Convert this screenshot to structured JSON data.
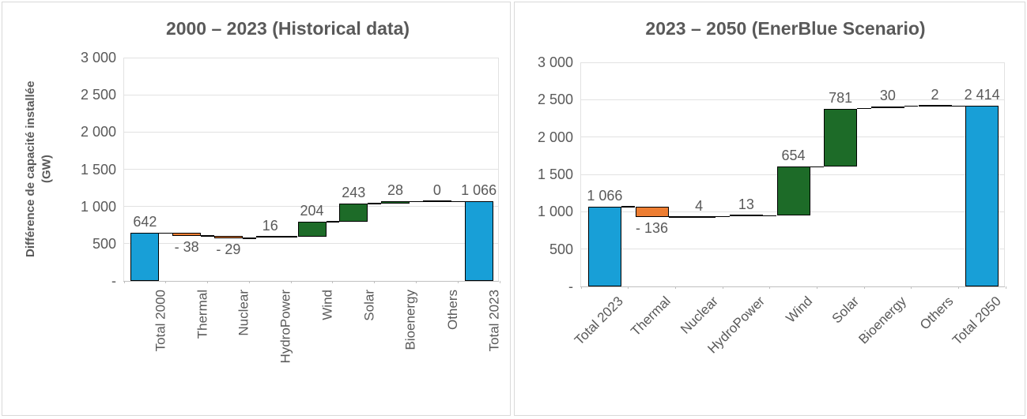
{
  "colors": {
    "total_bar": "#189FD7",
    "increase_bar": "#1D6B28",
    "decrease_bar": "#ED7D31",
    "bar_border": "#000000",
    "text": "#595959",
    "gridline": "#E2E2E2",
    "axis_line": "#BFBFBF",
    "panel_border": "#D9D9D9",
    "background": "#FFFFFF"
  },
  "chart_data": [
    {
      "type": "bar",
      "subtype": "waterfall",
      "title": "2000 – 2023 (Historical data)",
      "ylabel": "Différence de capacité installée (GW)",
      "categories": [
        "Total 2000",
        "Thermal",
        "Nuclear",
        "HydroPower",
        "Wind",
        "Solar",
        "Bioenergy",
        "Others",
        "Total 2023"
      ],
      "values": [
        642,
        -38,
        -29,
        16,
        204,
        243,
        28,
        0,
        1066
      ],
      "value_labels": [
        "642",
        "- 38",
        "- 29",
        "16",
        "204",
        "243",
        "28",
        "0",
        "1 066"
      ],
      "bar_roles": [
        "total",
        "decrease",
        "decrease",
        "increase",
        "increase",
        "increase",
        "increase",
        "increase",
        "total"
      ],
      "ylim": [
        0,
        3000
      ],
      "yticks": [
        3000,
        2500,
        2000,
        1500,
        1000,
        500,
        0
      ],
      "ytick_labels": [
        "3 000",
        "2 500",
        "2 000",
        "1 500",
        "1 000",
        "500",
        "-"
      ],
      "grid": true,
      "legend": "none",
      "connector_lines": true,
      "x_tick_rotation_deg": 90
    },
    {
      "type": "bar",
      "subtype": "waterfall",
      "title": "2023 – 2050 (EnerBlue Scenario)",
      "ylabel": "",
      "categories": [
        "Total 2023",
        "Thermal",
        "Nuclear",
        "HydroPower",
        "Wind",
        "Solar",
        "Bioenergy",
        "Others",
        "Total 2050"
      ],
      "values": [
        1066,
        -136,
        4,
        13,
        654,
        781,
        30,
        2,
        2414
      ],
      "value_labels": [
        "1 066",
        "- 136",
        "4",
        "13",
        "654",
        "781",
        "30",
        "2",
        "2 414"
      ],
      "bar_roles": [
        "total",
        "decrease",
        "increase",
        "increase",
        "increase",
        "increase",
        "increase",
        "increase",
        "total"
      ],
      "ylim": [
        0,
        3000
      ],
      "yticks": [
        3000,
        2500,
        2000,
        1500,
        1000,
        500,
        0
      ],
      "ytick_labels": [
        "3 000",
        "2 500",
        "2 000",
        "1 500",
        "1 000",
        "500",
        "-"
      ],
      "grid": true,
      "legend": "none",
      "connector_lines": true,
      "x_tick_rotation_deg": 45
    }
  ]
}
